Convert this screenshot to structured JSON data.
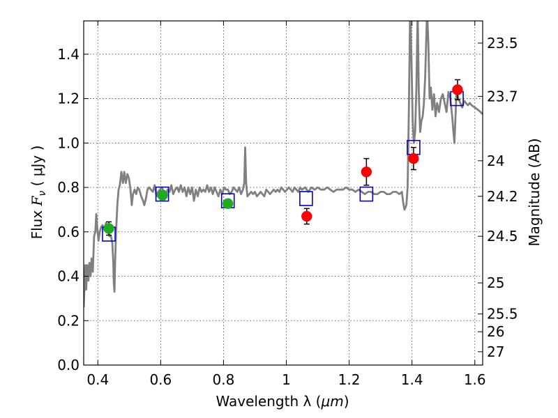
{
  "chart_data": {
    "type": "scatter",
    "xlabel": "Wavelength  λ (μm)",
    "ylabel": "Flux  F_ν  ( μJy )",
    "ylabel_parts": {
      "prefix": "Flux  ",
      "symbol": "F",
      "subscript": "ν",
      "suffix": "  ( μJy )"
    },
    "xlabel_parts": {
      "prefix": "Wavelength  λ (",
      "unit": "μm",
      "suffix": ")"
    },
    "y2label": "Magnitude (AB)",
    "xlim": [
      0.355,
      1.625
    ],
    "ylim": [
      0.0,
      1.55
    ],
    "grid": true,
    "x_ticks": [
      {
        "value": 0.4,
        "label": "0.4"
      },
      {
        "value": 0.6,
        "label": "0.6"
      },
      {
        "value": 0.8,
        "label": "0.8"
      },
      {
        "value": 1.0,
        "label": "1"
      },
      {
        "value": 1.2,
        "label": "1.2"
      },
      {
        "value": 1.4,
        "label": "1.4"
      },
      {
        "value": 1.6,
        "label": "1.6"
      }
    ],
    "y_ticks": [
      {
        "value": 0.0,
        "label": "0.0"
      },
      {
        "value": 0.2,
        "label": "0.2"
      },
      {
        "value": 0.4,
        "label": "0.4"
      },
      {
        "value": 0.6,
        "label": "0.6"
      },
      {
        "value": 0.8,
        "label": "0.8"
      },
      {
        "value": 1.0,
        "label": "1.0"
      },
      {
        "value": 1.2,
        "label": "1.2"
      },
      {
        "value": 1.4,
        "label": "1.4"
      }
    ],
    "y2_ticks": [
      {
        "flux": 1.45,
        "label": "23.5"
      },
      {
        "flux": 1.21,
        "label": "23.7"
      },
      {
        "flux": 0.92,
        "label": "24"
      },
      {
        "flux": 0.76,
        "label": "24.2"
      },
      {
        "flux": 0.58,
        "label": "24.5"
      },
      {
        "flux": 0.37,
        "label": "25"
      },
      {
        "flux": 0.23,
        "label": "25.5"
      },
      {
        "flux": 0.15,
        "label": "26"
      },
      {
        "flux": 0.06,
        "label": "27"
      }
    ],
    "colors": {
      "spectrum": "#808080",
      "green_points": "#1faa1f",
      "red_points": "#ff0000",
      "model_squares": "#0000cc",
      "error_bars": "#000000"
    },
    "series": [
      {
        "name": "model spectrum",
        "kind": "line",
        "points": [
          [
            0.355,
            0.26
          ],
          [
            0.36,
            0.45
          ],
          [
            0.363,
            0.34
          ],
          [
            0.366,
            0.45
          ],
          [
            0.37,
            0.38
          ],
          [
            0.373,
            0.46
          ],
          [
            0.377,
            0.4
          ],
          [
            0.38,
            0.48
          ],
          [
            0.384,
            0.42
          ],
          [
            0.388,
            0.58
          ],
          [
            0.392,
            0.6
          ],
          [
            0.395,
            0.68
          ],
          [
            0.398,
            0.62
          ],
          [
            0.402,
            0.56
          ],
          [
            0.406,
            0.6
          ],
          [
            0.41,
            0.62
          ],
          [
            0.415,
            0.63
          ],
          [
            0.42,
            0.61
          ],
          [
            0.426,
            0.64
          ],
          [
            0.432,
            0.62
          ],
          [
            0.437,
            0.58
          ],
          [
            0.442,
            0.58
          ],
          [
            0.446,
            0.55
          ],
          [
            0.449,
            0.47
          ],
          [
            0.451,
            0.37
          ],
          [
            0.453,
            0.33
          ],
          [
            0.455,
            0.46
          ],
          [
            0.458,
            0.6
          ],
          [
            0.462,
            0.72
          ],
          [
            0.466,
            0.79
          ],
          [
            0.47,
            0.81
          ],
          [
            0.475,
            0.87
          ],
          [
            0.48,
            0.82
          ],
          [
            0.484,
            0.87
          ],
          [
            0.489,
            0.82
          ],
          [
            0.494,
            0.86
          ],
          [
            0.499,
            0.84
          ],
          [
            0.504,
            0.79
          ],
          [
            0.508,
            0.72
          ],
          [
            0.512,
            0.77
          ],
          [
            0.517,
            0.79
          ],
          [
            0.522,
            0.77
          ],
          [
            0.527,
            0.8
          ],
          [
            0.532,
            0.79
          ],
          [
            0.538,
            0.76
          ],
          [
            0.544,
            0.74
          ],
          [
            0.548,
            0.72
          ],
          [
            0.553,
            0.75
          ],
          [
            0.558,
            0.79
          ],
          [
            0.563,
            0.8
          ],
          [
            0.569,
            0.79
          ],
          [
            0.575,
            0.78
          ],
          [
            0.581,
            0.81
          ],
          [
            0.587,
            0.76
          ],
          [
            0.592,
            0.78
          ],
          [
            0.598,
            0.79
          ],
          [
            0.604,
            0.8
          ],
          [
            0.61,
            0.78
          ],
          [
            0.616,
            0.76
          ],
          [
            0.622,
            0.79
          ],
          [
            0.628,
            0.78
          ],
          [
            0.634,
            0.81
          ],
          [
            0.64,
            0.77
          ],
          [
            0.646,
            0.79
          ],
          [
            0.652,
            0.8
          ],
          [
            0.658,
            0.78
          ],
          [
            0.664,
            0.81
          ],
          [
            0.67,
            0.78
          ],
          [
            0.676,
            0.8
          ],
          [
            0.682,
            0.76
          ],
          [
            0.688,
            0.8
          ],
          [
            0.694,
            0.77
          ],
          [
            0.7,
            0.8
          ],
          [
            0.706,
            0.74
          ],
          [
            0.712,
            0.79
          ],
          [
            0.718,
            0.76
          ],
          [
            0.724,
            0.8
          ],
          [
            0.73,
            0.78
          ],
          [
            0.736,
            0.79
          ],
          [
            0.742,
            0.78
          ],
          [
            0.748,
            0.81
          ],
          [
            0.754,
            0.78
          ],
          [
            0.76,
            0.8
          ],
          [
            0.766,
            0.77
          ],
          [
            0.772,
            0.8
          ],
          [
            0.778,
            0.78
          ],
          [
            0.784,
            0.76
          ],
          [
            0.79,
            0.79
          ],
          [
            0.796,
            0.77
          ],
          [
            0.802,
            0.8
          ],
          [
            0.808,
            0.79
          ],
          [
            0.814,
            0.79
          ],
          [
            0.82,
            0.77
          ],
          [
            0.826,
            0.78
          ],
          [
            0.832,
            0.8
          ],
          [
            0.838,
            0.79
          ],
          [
            0.844,
            0.78
          ],
          [
            0.85,
            0.8
          ],
          [
            0.856,
            0.77
          ],
          [
            0.862,
            0.79
          ],
          [
            0.866,
            0.82
          ],
          [
            0.869,
            0.98
          ],
          [
            0.872,
            0.82
          ],
          [
            0.876,
            0.76
          ],
          [
            0.882,
            0.77
          ],
          [
            0.888,
            0.78
          ],
          [
            0.894,
            0.77
          ],
          [
            0.9,
            0.78
          ],
          [
            0.906,
            0.76
          ],
          [
            0.912,
            0.77
          ],
          [
            0.918,
            0.78
          ],
          [
            0.924,
            0.77
          ],
          [
            0.93,
            0.76
          ],
          [
            0.936,
            0.79
          ],
          [
            0.942,
            0.78
          ],
          [
            0.948,
            0.77
          ],
          [
            0.954,
            0.78
          ],
          [
            0.96,
            0.79
          ],
          [
            0.966,
            0.78
          ],
          [
            0.972,
            0.79
          ],
          [
            0.978,
            0.78
          ],
          [
            0.984,
            0.8
          ],
          [
            0.99,
            0.79
          ],
          [
            0.996,
            0.78
          ],
          [
            1.002,
            0.79
          ],
          [
            1.008,
            0.8
          ],
          [
            1.014,
            0.79
          ],
          [
            1.02,
            0.78
          ],
          [
            1.026,
            0.8
          ],
          [
            1.032,
            0.79
          ],
          [
            1.038,
            0.78
          ],
          [
            1.044,
            0.8
          ],
          [
            1.05,
            0.79
          ],
          [
            1.06,
            0.8
          ],
          [
            1.07,
            0.78
          ],
          [
            1.08,
            0.8
          ],
          [
            1.09,
            0.79
          ],
          [
            1.1,
            0.8
          ],
          [
            1.11,
            0.79
          ],
          [
            1.12,
            0.79
          ],
          [
            1.13,
            0.8
          ],
          [
            1.14,
            0.79
          ],
          [
            1.15,
            0.78
          ],
          [
            1.16,
            0.79
          ],
          [
            1.17,
            0.79
          ],
          [
            1.18,
            0.79
          ],
          [
            1.19,
            0.8
          ],
          [
            1.2,
            0.79
          ],
          [
            1.21,
            0.79
          ],
          [
            1.22,
            0.78
          ],
          [
            1.23,
            0.79
          ],
          [
            1.24,
            0.78
          ],
          [
            1.25,
            0.77
          ],
          [
            1.26,
            0.78
          ],
          [
            1.27,
            0.78
          ],
          [
            1.28,
            0.77
          ],
          [
            1.29,
            0.77
          ],
          [
            1.3,
            0.78
          ],
          [
            1.31,
            0.78
          ],
          [
            1.32,
            0.77
          ],
          [
            1.33,
            0.77
          ],
          [
            1.34,
            0.78
          ],
          [
            1.35,
            0.78
          ],
          [
            1.36,
            0.77
          ],
          [
            1.368,
            0.78
          ],
          [
            1.372,
            0.73
          ],
          [
            1.376,
            0.7
          ],
          [
            1.382,
            0.72
          ],
          [
            1.386,
            0.8
          ],
          [
            1.39,
            1.15
          ],
          [
            1.394,
            1.6
          ],
          [
            1.398,
            1.4
          ],
          [
            1.402,
            1.1
          ],
          [
            1.406,
            1.0
          ],
          [
            1.41,
            1.05
          ],
          [
            1.414,
            1.25
          ],
          [
            1.418,
            1.6
          ],
          [
            1.422,
            1.2
          ],
          [
            1.426,
            1.05
          ],
          [
            1.43,
            1.1
          ],
          [
            1.434,
            1.12
          ],
          [
            1.438,
            1.18
          ],
          [
            1.442,
            1.3
          ],
          [
            1.448,
            1.6
          ],
          [
            1.452,
            1.45
          ],
          [
            1.456,
            1.2
          ],
          [
            1.46,
            1.25
          ],
          [
            1.465,
            1.15
          ],
          [
            1.47,
            1.22
          ],
          [
            1.475,
            1.12
          ],
          [
            1.48,
            1.18
          ],
          [
            1.486,
            1.14
          ],
          [
            1.492,
            1.2
          ],
          [
            1.498,
            1.22
          ],
          [
            1.504,
            1.18
          ],
          [
            1.51,
            1.14
          ],
          [
            1.516,
            1.23
          ],
          [
            1.522,
            1.2
          ],
          [
            1.528,
            1.12
          ],
          [
            1.532,
            1.05
          ],
          [
            1.535,
            1.0
          ],
          [
            1.538,
            1.1
          ],
          [
            1.542,
            1.24
          ],
          [
            1.548,
            1.2
          ],
          [
            1.554,
            1.18
          ],
          [
            1.56,
            1.16
          ],
          [
            1.566,
            1.19
          ],
          [
            1.572,
            1.18
          ],
          [
            1.578,
            1.17
          ],
          [
            1.584,
            1.18
          ],
          [
            1.59,
            1.17
          ],
          [
            1.6,
            1.16
          ],
          [
            1.61,
            1.15
          ],
          [
            1.618,
            1.14
          ],
          [
            1.625,
            1.13
          ]
        ]
      },
      {
        "name": "model magnitudes",
        "kind": "square",
        "x": [
          0.435,
          0.605,
          0.814,
          1.063,
          1.255,
          1.405,
          1.543
        ],
        "y": [
          0.59,
          0.77,
          0.74,
          0.75,
          0.77,
          0.98,
          1.2
        ]
      },
      {
        "name": "optical photometry",
        "kind": "circle",
        "color_key": "green_points",
        "x": [
          0.435,
          0.606,
          0.814
        ],
        "y": [
          0.615,
          0.765,
          0.727
        ],
        "yerr": [
          0.03,
          0.02,
          0.015
        ]
      },
      {
        "name": "near-IR photometry",
        "kind": "circle",
        "color_key": "red_points",
        "x": [
          1.065,
          1.255,
          1.405,
          1.545
        ],
        "y": [
          0.67,
          0.87,
          0.93,
          1.24
        ],
        "yerr": [
          0.035,
          0.06,
          0.05,
          0.045
        ]
      }
    ]
  }
}
